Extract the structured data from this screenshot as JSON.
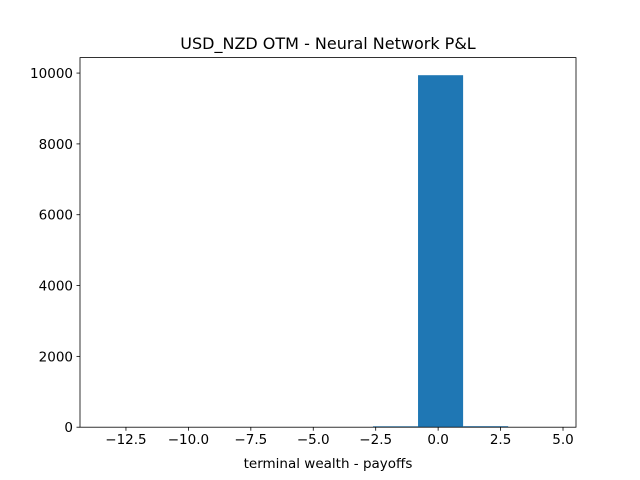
{
  "chart_data": {
    "type": "histogram",
    "title": "USD_NZD OTM - Neural Network P&L",
    "xlabel": "terminal wealth - payoffs",
    "bins": [
      -13.44,
      -11.635,
      -9.83,
      -8.025,
      -6.22,
      -4.415,
      -2.61,
      -0.805,
      1.0,
      2.805,
      4.61
    ],
    "counts": [
      1,
      0,
      0,
      0,
      1,
      2,
      25,
      9940,
      28,
      3
    ],
    "color": "#1f77b4",
    "xlim": [
      -14.34,
      5.52
    ],
    "ylim": [
      0,
      10437
    ],
    "xticks": [
      {
        "value": -12.5,
        "label": "−12.5"
      },
      {
        "value": -10,
        "label": "−10.0"
      },
      {
        "value": -7.5,
        "label": "−7.5"
      },
      {
        "value": -5,
        "label": "−5.0"
      },
      {
        "value": -2.5,
        "label": "−2.5"
      },
      {
        "value": 0,
        "label": "0.0"
      },
      {
        "value": 2.5,
        "label": "2.5"
      },
      {
        "value": 5,
        "label": "5.0"
      }
    ],
    "yticks": [
      0,
      2000,
      4000,
      6000,
      8000,
      10000
    ]
  }
}
